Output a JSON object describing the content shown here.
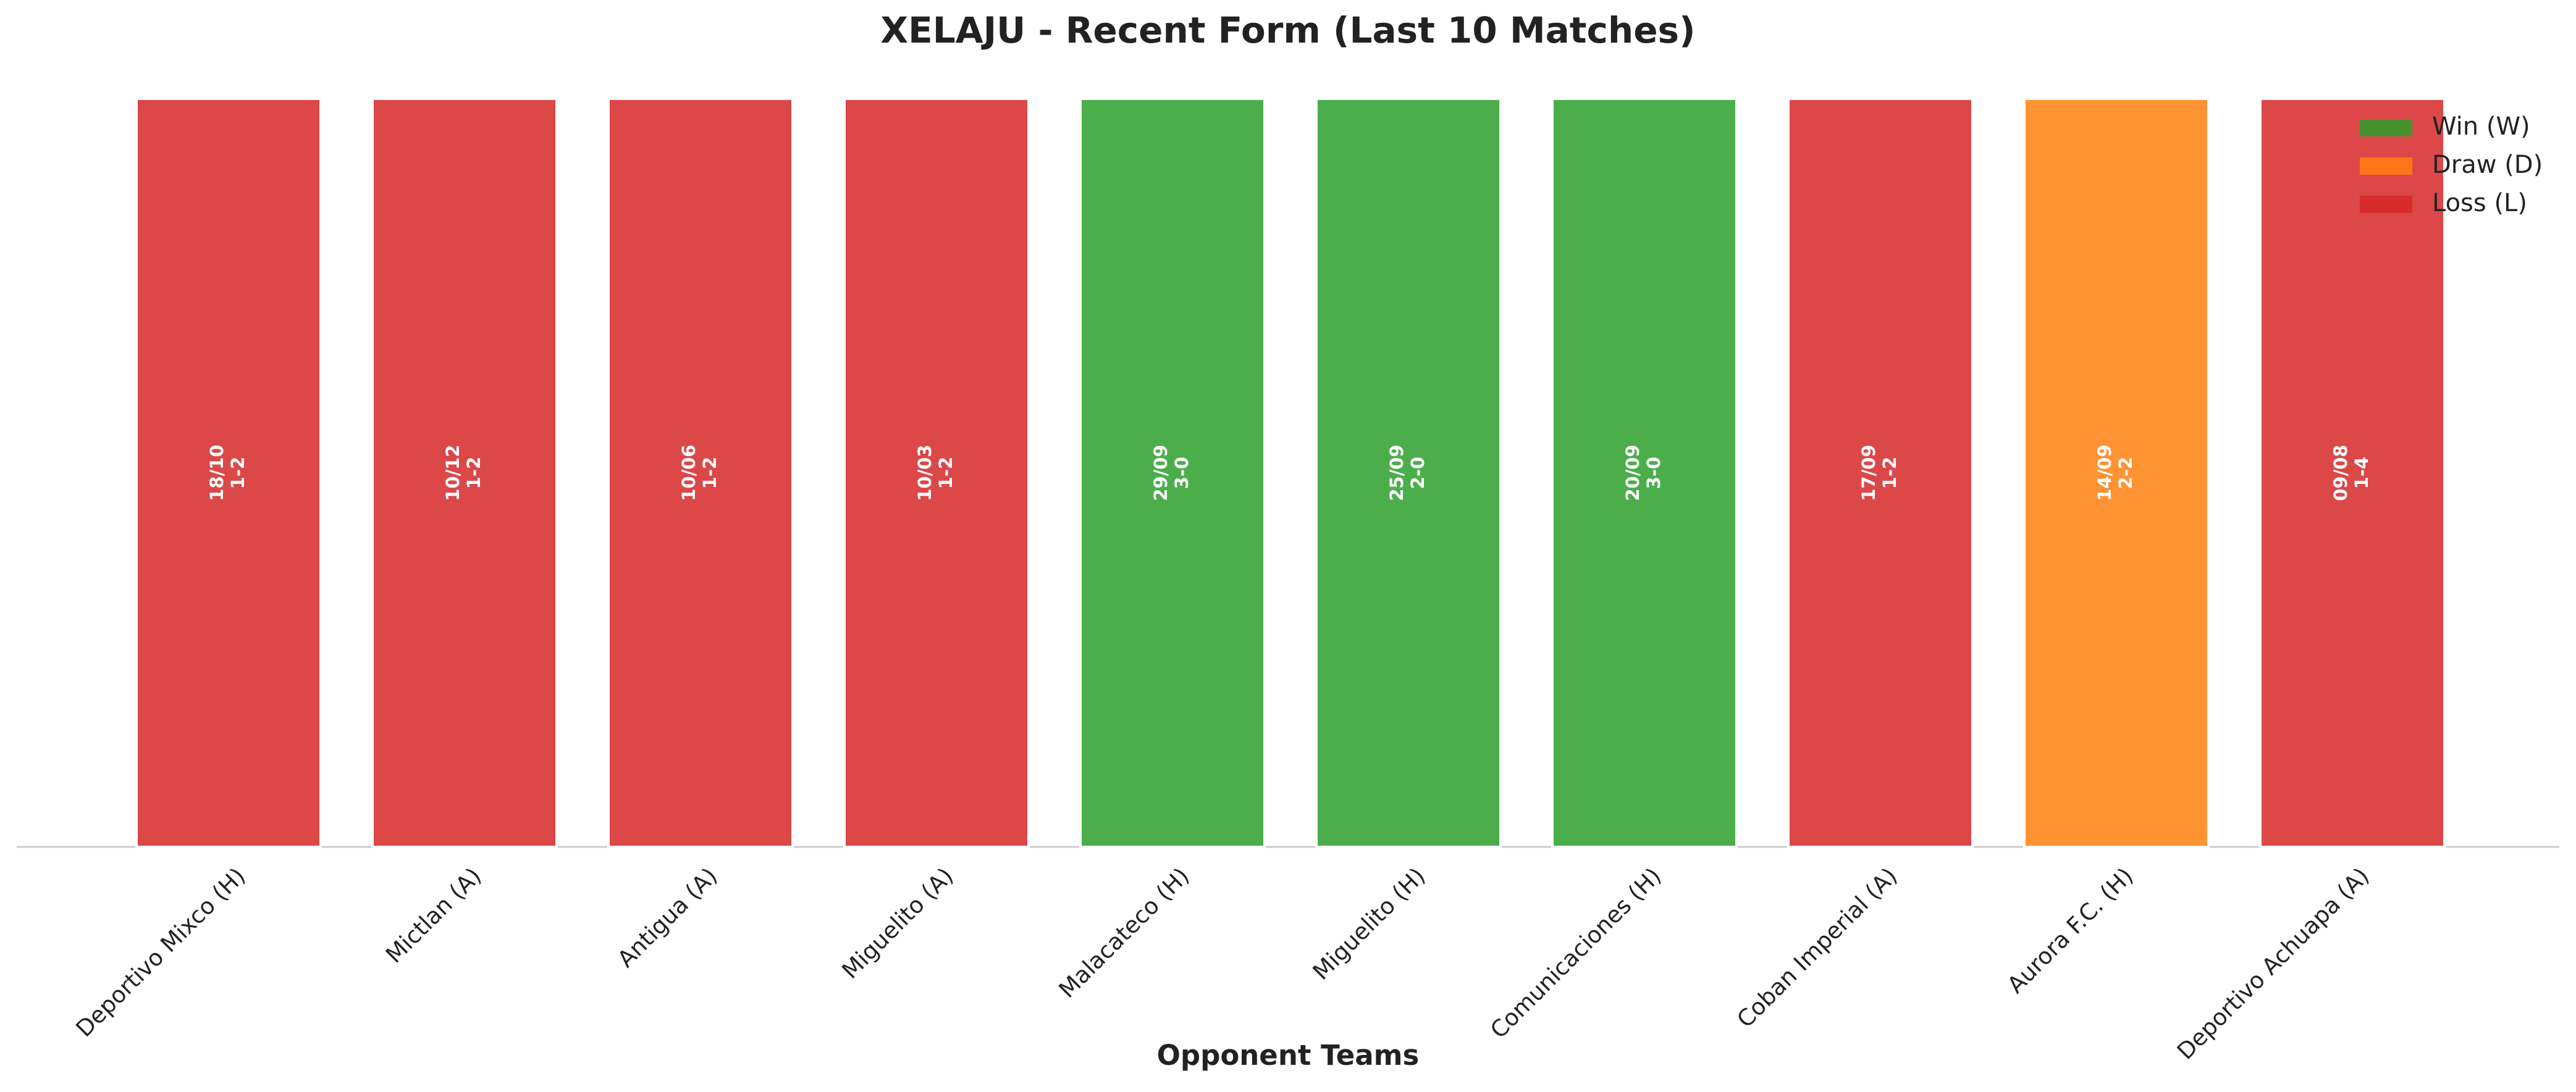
{
  "chart_data": {
    "type": "bar",
    "title": "XELAJU - Recent Form (Last 10 Matches)",
    "x_label": "Opponent Teams",
    "categories": [
      "Deportivo Mixco (H)",
      "Mictlan (A)",
      "Antigua (A)",
      "Miguelito (A)",
      "Malacateco (H)",
      "Miguelito (H)",
      "Comunicaciones (H)",
      "Coban Imperial (A)",
      "Aurora F.C. (H)",
      "Deportivo Achuapa (A)"
    ],
    "values": [
      1,
      1,
      1,
      1,
      1,
      1,
      1,
      1,
      1,
      1
    ],
    "dates": [
      "18/10",
      "10/12",
      "10/06",
      "10/03",
      "29/09",
      "25/09",
      "20/09",
      "17/09",
      "14/09",
      "09/08"
    ],
    "scores": [
      "1-2",
      "1-2",
      "1-2",
      "1-2",
      "3-0",
      "2-0",
      "3-0",
      "1-2",
      "2-2",
      "1-4"
    ],
    "colors": [
      "#d62728",
      "#d62728",
      "#d62728",
      "#d62728",
      "#2ca02c",
      "#2ca02c",
      "#2ca02c",
      "#d62728",
      "#ff7f0e",
      "#d62728"
    ],
    "ylim": [
      0,
      1
    ],
    "legend_position": "upper right",
    "legend": [
      {
        "name": "Win (W)",
        "color": "#2ca02c"
      },
      {
        "name": "Draw (D)",
        "color": "#ff7f0e"
      },
      {
        "name": "Loss (L)",
        "color": "#d62728"
      }
    ]
  }
}
